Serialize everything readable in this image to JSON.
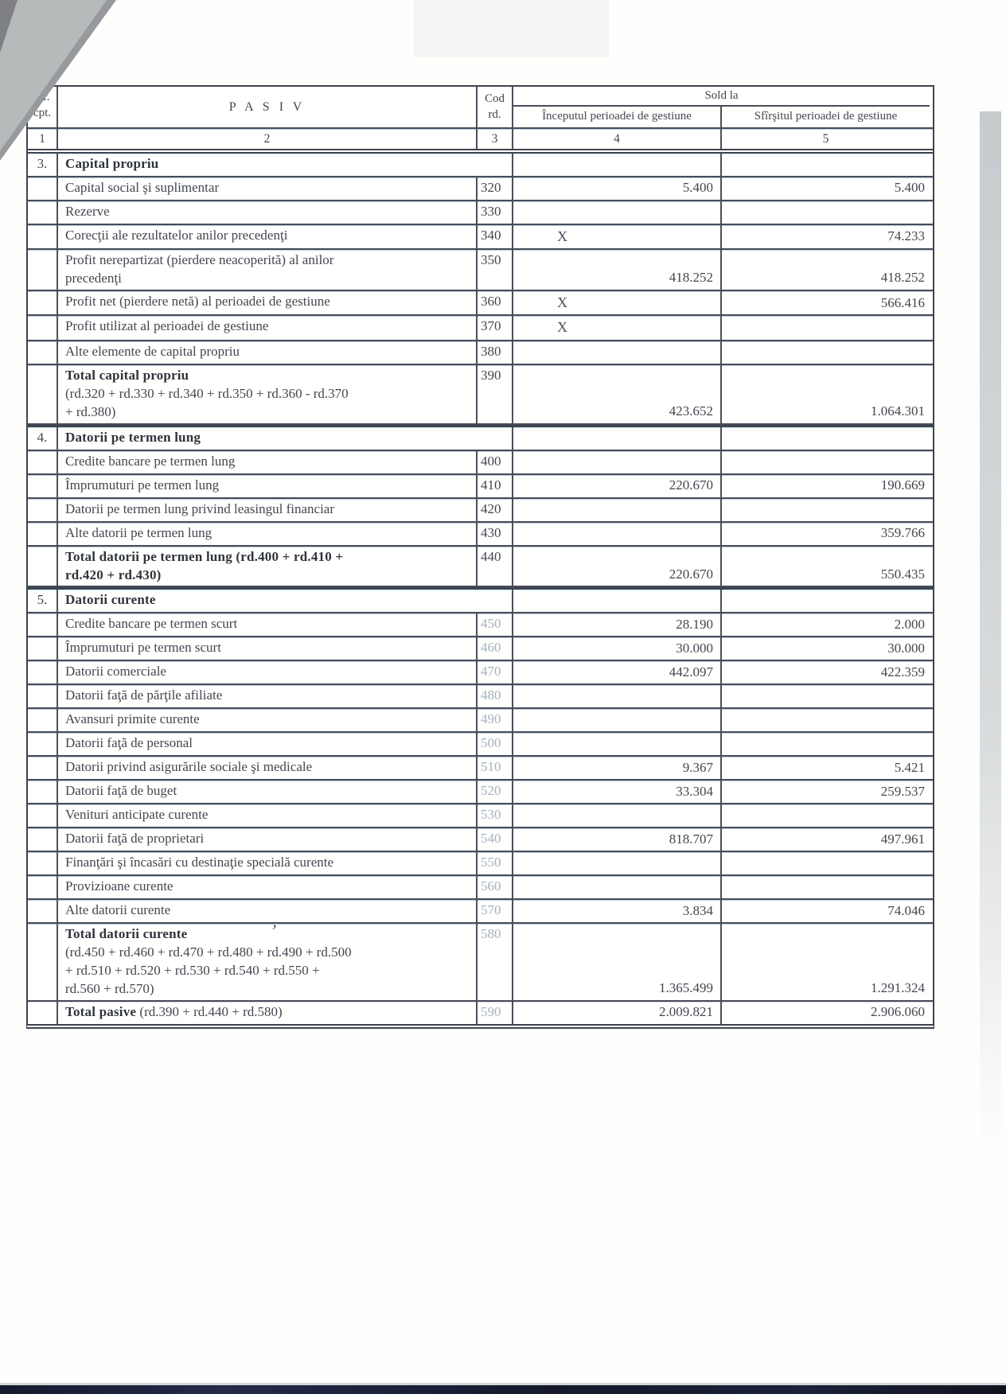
{
  "colors": {
    "ink": "#424750",
    "table_border": "#3f4450",
    "faint_code": "#a3b2bd"
  },
  "table": {
    "header": {
      "nr_line1": "Nr.",
      "nr_line2": "cpt.",
      "pasiv": "P A S I V",
      "cod_line1": "Cod",
      "cod_line2": "rd.",
      "sold_la": "Sold la",
      "sub_start": "Începutul perioadei de gestiune",
      "sub_end": "Sfîrşitul perioadei de gestiune",
      "numbering": [
        "1",
        "2",
        "3",
        "4",
        "5"
      ]
    },
    "rows": [
      {
        "type": "section",
        "num": "3.",
        "label": "Capital propriu"
      },
      {
        "type": "item",
        "label": "Capital social şi suplimentar",
        "code": "320",
        "start": "5.400",
        "end": "5.400"
      },
      {
        "type": "item",
        "label": "Rezerve",
        "code": "330",
        "start": "",
        "end": ""
      },
      {
        "type": "item",
        "label": "Corecţii ale rezultatelor anilor precedenţi",
        "code": "340",
        "start": "X",
        "end": "74.233"
      },
      {
        "type": "item",
        "label": "Profit nerepartizat (pierdere neacoperită) al anilor\nprecedenţi",
        "code": "350",
        "start": "418.252",
        "end": "418.252"
      },
      {
        "type": "item",
        "label": "Profit net (pierdere netă) al perioadei de gestiune",
        "code": "360",
        "start": "X",
        "end": "566.416"
      },
      {
        "type": "item",
        "label": "Profit utilizat al perioadei de gestiune",
        "code": "370",
        "start": "X",
        "end": ""
      },
      {
        "type": "item",
        "label": "Alte elemente de capital propriu",
        "code": "380",
        "start": "",
        "end": ""
      },
      {
        "type": "total",
        "label": "Total capital propriu",
        "formula": "(rd.320 + rd.330 + rd.340 + rd.350 + rd.360 - rd.370\n+ rd.380)",
        "code": "390",
        "start": "423.652",
        "end": "1.064.301"
      },
      {
        "type": "section",
        "num": "4.",
        "label": "Datorii pe termen lung",
        "heavy_top": true
      },
      {
        "type": "item",
        "label": "Credite bancare pe termen lung",
        "code": "400",
        "start": "",
        "end": ""
      },
      {
        "type": "item",
        "label": "Împrumuturi pe termen lung",
        "code": "410",
        "start": "220.670",
        "end": "190.669"
      },
      {
        "type": "item",
        "label": "Datorii pe termen lung privind leasingul financiar",
        "code": "420",
        "start": "",
        "end": ""
      },
      {
        "type": "item",
        "label": "Alte datorii pe termen lung",
        "code": "430",
        "start": "",
        "end": "359.766"
      },
      {
        "type": "total",
        "label": "Total datorii pe termen lung (rd.400 + rd.410 +\nrd.420 + rd.430)",
        "code": "440",
        "start": "220.670",
        "end": "550.435"
      },
      {
        "type": "section",
        "num": "5.",
        "label": "Datorii curente",
        "heavy_top": true
      },
      {
        "type": "item",
        "label": "Credite bancare pe termen scurt",
        "code": "450",
        "faint": true,
        "start": "28.190",
        "end": "2.000"
      },
      {
        "type": "item",
        "label": "Împrumuturi pe termen scurt",
        "code": "460",
        "faint": true,
        "start": "30.000",
        "end": "30.000"
      },
      {
        "type": "item",
        "label": "Datorii comerciale",
        "code": "470",
        "faint": true,
        "start": "442.097",
        "end": "422.359"
      },
      {
        "type": "item",
        "label": "Datorii faţă de părţile afiliate",
        "code": "480",
        "faint": true,
        "start": "",
        "end": ""
      },
      {
        "type": "item",
        "label": "Avansuri primite curente",
        "code": "490",
        "faint": true,
        "start": "",
        "end": ""
      },
      {
        "type": "item",
        "label": "Datorii faţă de personal",
        "code": "500",
        "faint": true,
        "start": "",
        "end": ""
      },
      {
        "type": "item",
        "label": "Datorii privind asigurările sociale şi medicale",
        "code": "510",
        "faint": true,
        "start": "9.367",
        "end": "5.421"
      },
      {
        "type": "item",
        "label": "Datorii faţă de buget",
        "code": "520",
        "faint": true,
        "start": "33.304",
        "end": "259.537"
      },
      {
        "type": "item",
        "label": "Venituri anticipate curente",
        "code": "530",
        "faint": true,
        "start": "",
        "end": ""
      },
      {
        "type": "item",
        "label": "Datorii faţă de proprietari",
        "code": "540",
        "faint": true,
        "start": "818.707",
        "end": "497.961"
      },
      {
        "type": "item",
        "label": "Finanţări şi încasări cu destinaţie specială curente",
        "code": "550",
        "faint": true,
        "start": "",
        "end": ""
      },
      {
        "type": "item",
        "label": "Provizioane curente",
        "code": "560",
        "faint": true,
        "start": "",
        "end": ""
      },
      {
        "type": "item",
        "label": "Alte datorii curente",
        "code": "570",
        "faint": true,
        "start": "3.834",
        "end": "74.046"
      },
      {
        "type": "total",
        "label": "Total datorii curente",
        "mark": "ʼ",
        "formula": "(rd.450 + rd.460 + rd.470 + rd.480 + rd.490 + rd.500\n+ rd.510 + rd.520 +  rd.530 + rd.540 + rd.550 +\nrd.560 + rd.570)",
        "code": "580",
        "faint": true,
        "start": "1.365.499",
        "end": "1.291.324"
      },
      {
        "type": "total",
        "label": "Total pasive",
        "formula": " (rd.390 + rd.440 + rd.580)",
        "inline": true,
        "code": "590",
        "faint": true,
        "start": "2.009.821",
        "end": "2.906.060"
      }
    ]
  }
}
